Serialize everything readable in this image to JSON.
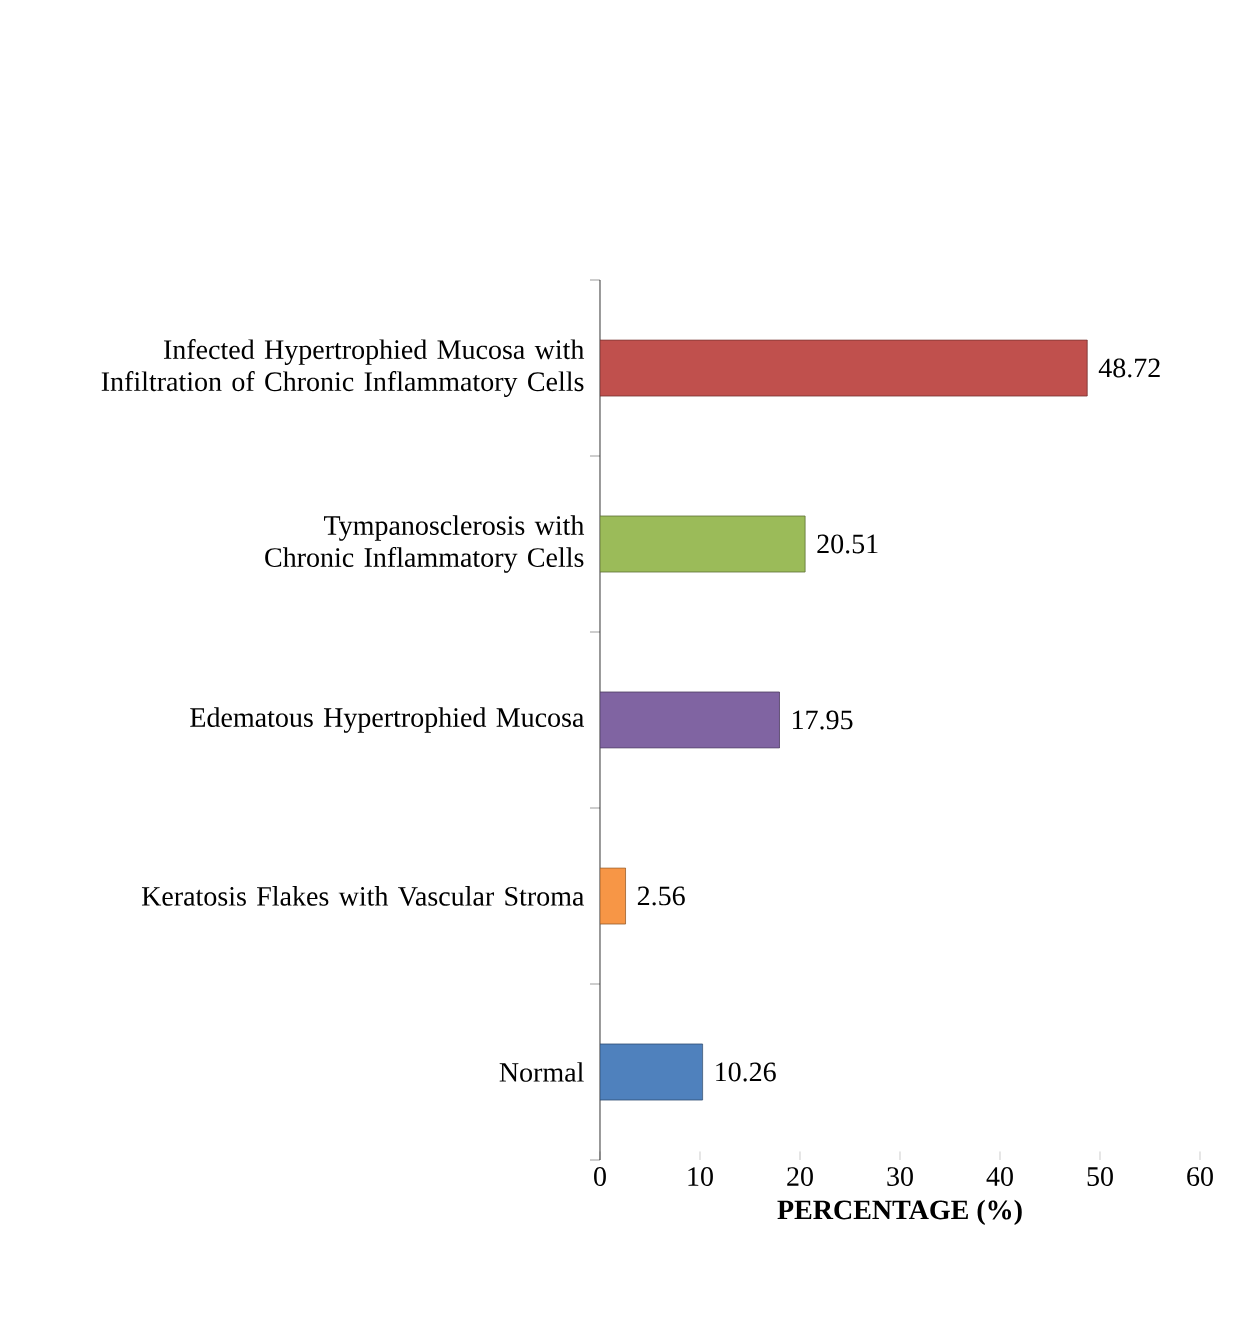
{
  "chart_data": {
    "type": "bar",
    "orientation": "horizontal",
    "xlabel": "PERCENTAGE (%)",
    "categories": [
      "Infected Hypertrophied Mucosa with Infiltration of Chronic Inflammatory Cells",
      "Tympanosclerosis with Chronic Inflammatory Cells",
      "Edematous Hypertrophied Mucosa",
      "Keratosis Flakes with Vascular Stroma",
      "Normal"
    ],
    "values": [
      48.72,
      20.51,
      17.95,
      2.56,
      10.26
    ],
    "colors": [
      "#c0504d",
      "#9bbb59",
      "#8064a2",
      "#f79646",
      "#4f81bd"
    ],
    "xlim": [
      0,
      60
    ],
    "xticks": [
      0,
      10,
      20,
      30,
      40,
      50,
      60
    ],
    "data_labels": true
  }
}
